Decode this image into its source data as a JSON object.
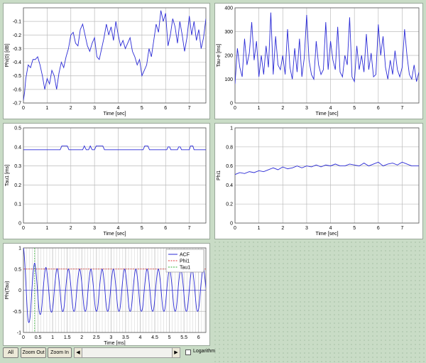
{
  "charts": [
    {
      "id": "phi0",
      "type": "line",
      "xlabel": "Time [sec]",
      "ylabel": "Phi(0) [dB]",
      "xlim": [
        0,
        7.7
      ],
      "ylim": [
        -0.7,
        0.0
      ],
      "xticks": [
        0,
        1,
        2,
        3,
        4,
        5,
        6,
        7
      ],
      "xtick_labels": [
        "0",
        "1",
        "2",
        "3",
        "4",
        "5",
        "6",
        "7"
      ],
      "yticks": [
        -0.7,
        -0.6,
        -0.5,
        -0.4,
        -0.3,
        -0.2,
        -0.1
      ],
      "ytick_labels": [
        "-0.7",
        "-0.6",
        "-0.5",
        "-0.4",
        "-0.3",
        "-0.2",
        "-0.1"
      ],
      "grid": true,
      "series": [
        {
          "color": "#2b2bd6",
          "x": [
            0,
            0.05,
            0.1,
            0.2,
            0.3,
            0.4,
            0.5,
            0.6,
            0.7,
            0.8,
            0.9,
            1.0,
            1.1,
            1.2,
            1.3,
            1.4,
            1.5,
            1.6,
            1.7,
            1.8,
            1.9,
            2.0,
            2.1,
            2.2,
            2.3,
            2.4,
            2.5,
            2.6,
            2.7,
            2.8,
            2.9,
            3.0,
            3.1,
            3.2,
            3.3,
            3.4,
            3.5,
            3.6,
            3.7,
            3.8,
            3.9,
            4.0,
            4.1,
            4.2,
            4.3,
            4.4,
            4.5,
            4.6,
            4.7,
            4.8,
            4.9,
            5.0,
            5.1,
            5.2,
            5.3,
            5.4,
            5.5,
            5.6,
            5.7,
            5.8,
            5.9,
            6.0,
            6.1,
            6.2,
            6.3,
            6.4,
            6.5,
            6.6,
            6.7,
            6.8,
            6.9,
            7.0,
            7.1,
            7.2,
            7.3,
            7.4,
            7.5,
            7.6,
            7.7
          ],
          "y": [
            -0.68,
            -0.62,
            -0.52,
            -0.42,
            -0.44,
            -0.38,
            -0.38,
            -0.36,
            -0.42,
            -0.5,
            -0.6,
            -0.52,
            -0.56,
            -0.46,
            -0.5,
            -0.6,
            -0.48,
            -0.4,
            -0.44,
            -0.36,
            -0.3,
            -0.2,
            -0.18,
            -0.26,
            -0.28,
            -0.16,
            -0.12,
            -0.2,
            -0.28,
            -0.32,
            -0.26,
            -0.22,
            -0.36,
            -0.38,
            -0.3,
            -0.22,
            -0.12,
            -0.2,
            -0.14,
            -0.24,
            -0.1,
            -0.2,
            -0.28,
            -0.24,
            -0.3,
            -0.26,
            -0.22,
            -0.32,
            -0.36,
            -0.42,
            -0.38,
            -0.5,
            -0.46,
            -0.42,
            -0.3,
            -0.36,
            -0.24,
            -0.12,
            -0.18,
            -0.02,
            -0.1,
            -0.04,
            -0.28,
            -0.2,
            -0.08,
            -0.14,
            -0.26,
            -0.1,
            -0.2,
            -0.32,
            -0.22,
            -0.06,
            -0.2,
            -0.1,
            -0.24,
            -0.16,
            -0.3,
            -0.22,
            -0.08
          ]
        }
      ]
    },
    {
      "id": "taue",
      "type": "line",
      "xlabel": "Time [sec]",
      "ylabel": "Tau-e [ms]",
      "xlim": [
        0,
        7.7
      ],
      "ylim": [
        0,
        400
      ],
      "xticks": [
        0,
        1,
        2,
        3,
        4,
        5,
        6,
        7
      ],
      "xtick_labels": [
        "0",
        "1",
        "2",
        "3",
        "4",
        "5",
        "6",
        "7"
      ],
      "yticks": [
        0,
        100,
        200,
        300,
        400
      ],
      "ytick_labels": [
        "0",
        "100",
        "200",
        "300",
        "400"
      ],
      "grid": true,
      "series": [
        {
          "color": "#2b2bd6",
          "x": [
            0,
            0.1,
            0.2,
            0.3,
            0.4,
            0.5,
            0.6,
            0.7,
            0.8,
            0.9,
            1.0,
            1.1,
            1.2,
            1.3,
            1.4,
            1.5,
            1.6,
            1.7,
            1.8,
            1.9,
            2.0,
            2.1,
            2.2,
            2.3,
            2.4,
            2.5,
            2.6,
            2.7,
            2.8,
            2.9,
            3.0,
            3.1,
            3.2,
            3.3,
            3.4,
            3.5,
            3.6,
            3.7,
            3.8,
            3.9,
            4.0,
            4.1,
            4.2,
            4.3,
            4.4,
            4.5,
            4.6,
            4.7,
            4.8,
            4.9,
            5.0,
            5.1,
            5.2,
            5.3,
            5.4,
            5.5,
            5.6,
            5.7,
            5.8,
            5.9,
            6.0,
            6.1,
            6.2,
            6.3,
            6.4,
            6.5,
            6.6,
            6.7,
            6.8,
            6.9,
            7.0,
            7.1,
            7.2,
            7.3,
            7.4,
            7.5,
            7.6,
            7.7
          ],
          "y": [
            80,
            230,
            150,
            110,
            270,
            160,
            210,
            340,
            180,
            260,
            110,
            200,
            120,
            240,
            150,
            380,
            120,
            280,
            160,
            140,
            200,
            120,
            310,
            150,
            100,
            230,
            130,
            270,
            110,
            190,
            370,
            180,
            120,
            100,
            260,
            160,
            120,
            140,
            340,
            140,
            260,
            180,
            140,
            320,
            130,
            110,
            200,
            160,
            360,
            110,
            90,
            240,
            140,
            200,
            130,
            290,
            140,
            210,
            110,
            120,
            330,
            200,
            280,
            150,
            100,
            180,
            120,
            220,
            140,
            110,
            150,
            310,
            200,
            120,
            100,
            160,
            90,
            130
          ]
        }
      ]
    },
    {
      "id": "tau1",
      "type": "line",
      "xlabel": "Time [sec]",
      "ylabel": "Tau1 [ms]",
      "xlim": [
        0,
        7.7
      ],
      "ylim": [
        0,
        0.5
      ],
      "xticks": [
        0,
        1,
        2,
        3,
        4,
        5,
        6,
        7
      ],
      "xtick_labels": [
        "0",
        "1",
        "2",
        "3",
        "4",
        "5",
        "6",
        "7"
      ],
      "yticks": [
        0,
        0.1,
        0.2,
        0.3,
        0.4,
        0.5
      ],
      "ytick_labels": [
        "0",
        "0.1",
        "0.2",
        "0.3",
        "0.4",
        "0.5"
      ],
      "grid": true,
      "series": [
        {
          "color": "#2b2bd6",
          "x": [
            0,
            1.55,
            1.62,
            1.85,
            1.92,
            2.5,
            2.57,
            2.65,
            2.75,
            2.82,
            2.9,
            3.0,
            3.07,
            3.35,
            3.42,
            5.05,
            5.12,
            5.25,
            5.32,
            6.05,
            6.1,
            6.17,
            6.22,
            6.5,
            6.55,
            6.62,
            6.67,
            7.0,
            7.05,
            7.15,
            7.2,
            7.7
          ],
          "y": [
            0.385,
            0.385,
            0.405,
            0.405,
            0.385,
            0.385,
            0.405,
            0.385,
            0.385,
            0.405,
            0.385,
            0.385,
            0.405,
            0.405,
            0.385,
            0.385,
            0.405,
            0.405,
            0.385,
            0.385,
            0.4,
            0.4,
            0.385,
            0.385,
            0.4,
            0.4,
            0.385,
            0.385,
            0.405,
            0.405,
            0.385,
            0.385
          ]
        }
      ]
    },
    {
      "id": "phi1",
      "type": "line",
      "xlabel": "Time [sec]",
      "ylabel": "Phi1",
      "xlim": [
        0,
        7.7
      ],
      "ylim": [
        0,
        1.0
      ],
      "xticks": [
        0,
        1,
        2,
        3,
        4,
        5,
        6,
        7
      ],
      "xtick_labels": [
        "0",
        "1",
        "2",
        "3",
        "4",
        "5",
        "6",
        "7"
      ],
      "yticks": [
        0,
        0.2,
        0.4,
        0.6,
        0.8,
        1.0
      ],
      "ytick_labels": [
        "0",
        "0.2",
        "0.4",
        "0.6",
        "0.8",
        "1"
      ],
      "grid": true,
      "series": [
        {
          "color": "#2b2bd6",
          "x": [
            0,
            0.2,
            0.4,
            0.6,
            0.8,
            1.0,
            1.2,
            1.4,
            1.6,
            1.8,
            2.0,
            2.2,
            2.4,
            2.6,
            2.8,
            3.0,
            3.2,
            3.4,
            3.6,
            3.8,
            4.0,
            4.2,
            4.4,
            4.6,
            4.8,
            5.0,
            5.2,
            5.4,
            5.6,
            5.8,
            6.0,
            6.2,
            6.4,
            6.6,
            6.8,
            7.0,
            7.2,
            7.4,
            7.7
          ],
          "y": [
            0.51,
            0.53,
            0.52,
            0.54,
            0.53,
            0.55,
            0.54,
            0.56,
            0.58,
            0.56,
            0.59,
            0.57,
            0.58,
            0.6,
            0.58,
            0.6,
            0.59,
            0.61,
            0.59,
            0.61,
            0.6,
            0.62,
            0.6,
            0.6,
            0.62,
            0.61,
            0.6,
            0.63,
            0.6,
            0.62,
            0.64,
            0.6,
            0.62,
            0.63,
            0.61,
            0.64,
            0.62,
            0.6,
            0.6
          ]
        }
      ]
    },
    {
      "id": "acf",
      "type": "line",
      "xlabel": "Time [ms]",
      "ylabel": "Phi(Tau)",
      "xlim": [
        0,
        6.25
      ],
      "ylim": [
        -1,
        1
      ],
      "xticks": [
        0,
        0.5,
        1,
        1.5,
        2,
        2.5,
        3,
        3.5,
        4,
        4.5,
        5,
        5.5,
        6
      ],
      "xtick_labels": [
        "0",
        "0.5",
        "1",
        "1.5",
        "2",
        "2.5",
        "3",
        "3.5",
        "4",
        "4.5",
        "5",
        "5.5",
        "6"
      ],
      "yticks": [
        -1,
        -0.5,
        0,
        0.5,
        1
      ],
      "ytick_labels": [
        "-1",
        "-0.5",
        "0",
        "0.5",
        "1"
      ],
      "grid": true,
      "acf": {
        "period": 0.385,
        "decay": 0.3,
        "floor": 0.5
      },
      "phi1_level": 0.5,
      "tau1_x": 0.385,
      "legend": {
        "position": "top-right",
        "entries": [
          {
            "label": "ACF",
            "color": "#2b2bd6",
            "style": "solid"
          },
          {
            "label": "Phi1",
            "color": "#e03030",
            "style": "dashed"
          },
          {
            "label": "Tau1",
            "color": "#30b030",
            "style": "dashed"
          }
        ]
      },
      "series": [
        {
          "name": "ACF",
          "color": "#2b2bd6"
        }
      ]
    }
  ],
  "toolbar": {
    "all_label": "All",
    "zoom_out_label": "Zoom Out",
    "zoom_in_label": "Zoom In",
    "left_arrow": "◀",
    "right_arrow": "▶",
    "log_label": "Logarithm"
  }
}
